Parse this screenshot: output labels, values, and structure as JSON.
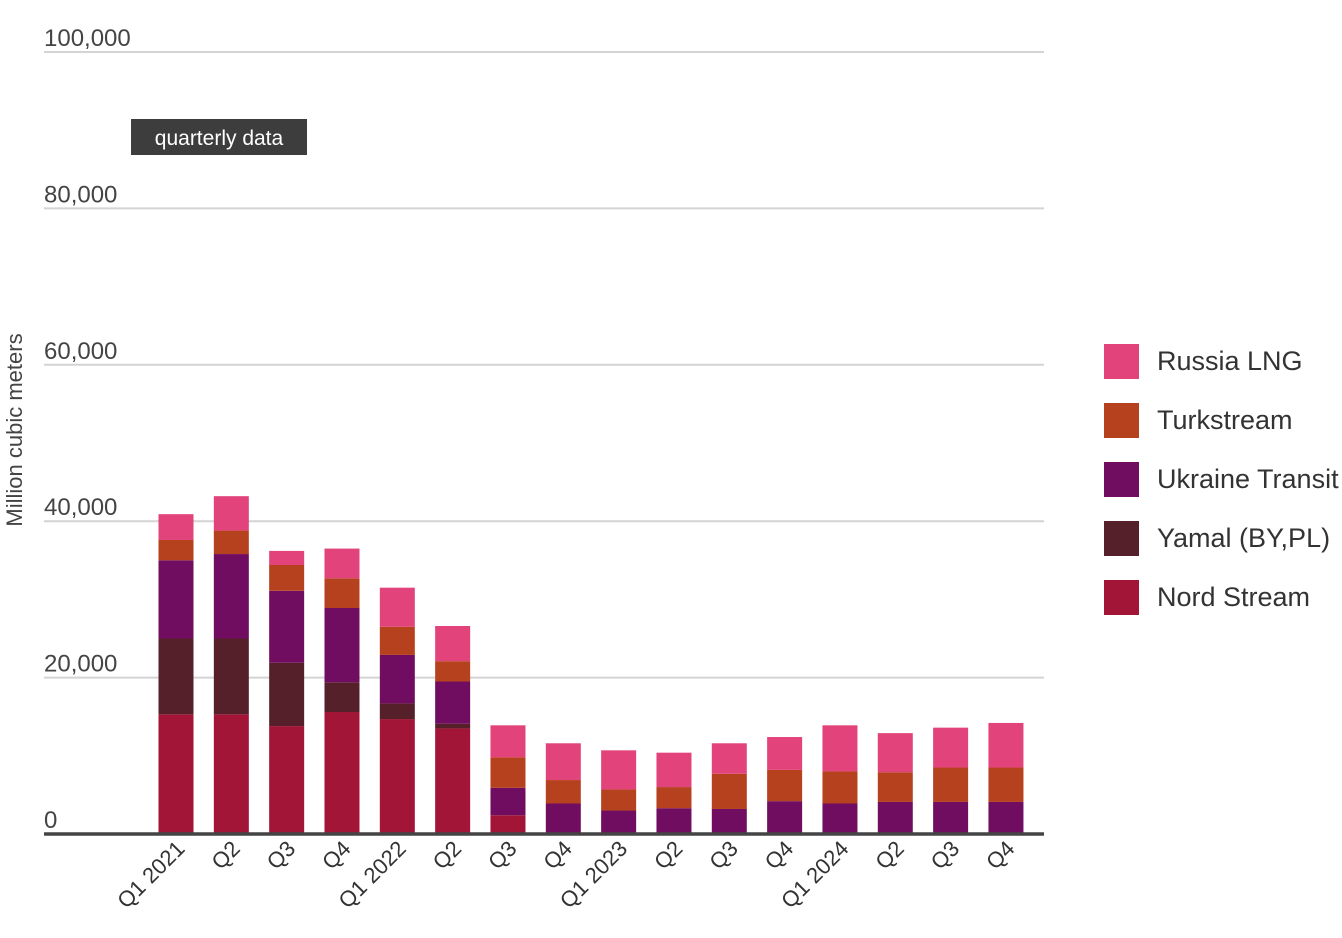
{
  "chart_data": {
    "type": "bar",
    "stacked": true,
    "ylabel": "Million cubic meters",
    "ylim": [
      0,
      100000
    ],
    "y_ticks": [
      {
        "value": 0,
        "label": "0"
      },
      {
        "value": 20000,
        "label": "20,000"
      },
      {
        "value": 40000,
        "label": "40,000"
      },
      {
        "value": 60000,
        "label": "60,000"
      },
      {
        "value": 80000,
        "label": "80,000"
      },
      {
        "value": 100000,
        "label": "100,000"
      }
    ],
    "grid": true,
    "legend_position": "right",
    "annotation": "quarterly data",
    "categories": [
      "Q1 2021",
      "Q2",
      "Q3",
      "Q4",
      "Q1 2022",
      "Q2",
      "Q3",
      "Q4",
      "Q1 2023",
      "Q2",
      "Q3",
      "Q4",
      "Q1 2024",
      "Q2",
      "Q3",
      "Q4"
    ],
    "series": [
      {
        "name": "Nord Stream",
        "color": "#a31537",
        "values": [
          15300,
          15300,
          13800,
          15600,
          14700,
          13500,
          2400,
          0,
          0,
          0,
          0,
          0,
          0,
          0,
          0,
          0
        ]
      },
      {
        "name": "Yamal (BY,PL)",
        "color": "#56202b",
        "values": [
          9700,
          9700,
          8100,
          3800,
          2000,
          600,
          0,
          0,
          0,
          0,
          0,
          0,
          0,
          0,
          0,
          0
        ]
      },
      {
        "name": "Ukraine Transit",
        "color": "#710d61",
        "values": [
          10000,
          10800,
          9200,
          9500,
          6200,
          5400,
          3500,
          3900,
          3000,
          3300,
          3200,
          4200,
          3900,
          4100,
          4100,
          4100
        ]
      },
      {
        "name": "Turkstream",
        "color": "#b6411f",
        "values": [
          2600,
          3000,
          3300,
          3800,
          3600,
          2600,
          3900,
          3000,
          2700,
          2700,
          4500,
          4000,
          4100,
          3800,
          4400,
          4400
        ]
      },
      {
        "name": "Russia LNG",
        "color": "#e2437a",
        "values": [
          3300,
          4400,
          1800,
          3800,
          5000,
          4500,
          4100,
          4700,
          5000,
          4400,
          3900,
          4200,
          5900,
          5000,
          5100,
          5700
        ]
      }
    ]
  }
}
